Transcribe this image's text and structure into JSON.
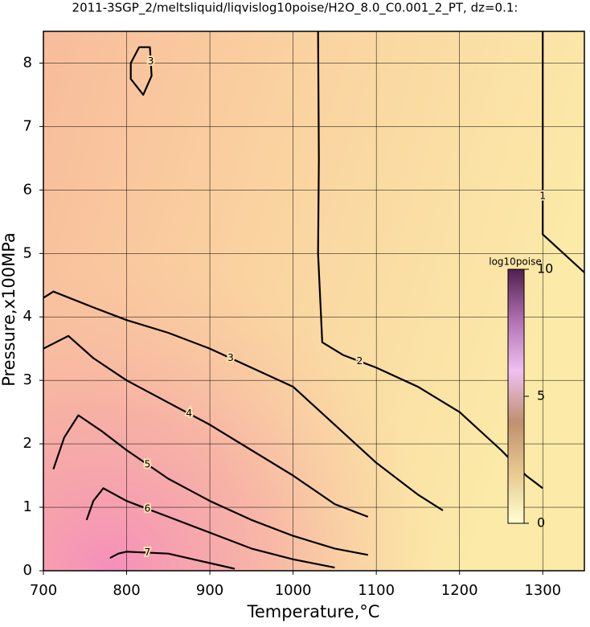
{
  "chart_data": {
    "type": "contour",
    "title": "2011-3SGP_2/meltsliquid/liqvislog10poise/H2O_8.0_C0.001_2_PT, dz=0.1:",
    "x_label": "Temperature,°C",
    "y_label": "Pressure,x100MPa",
    "xlim": [
      700,
      1350
    ],
    "ylim": [
      0,
      8.5
    ],
    "xticks": [
      700,
      800,
      900,
      1000,
      1100,
      1200,
      1300
    ],
    "yticks": [
      0,
      1,
      2,
      3,
      4,
      5,
      6,
      7,
      8
    ],
    "grid": true,
    "series": [
      {
        "level": 1,
        "x": [
          1300,
          1300,
          1300,
          1350
        ],
        "y": [
          8.5,
          6.5,
          5.3,
          4.7
        ]
      },
      {
        "level": 2,
        "x": [
          1030,
          1031,
          1030,
          1035,
          1060,
          1100,
          1150,
          1200,
          1250,
          1280,
          1300
        ],
        "y": [
          8.5,
          6.5,
          5.0,
          3.6,
          3.4,
          3.2,
          2.9,
          2.5,
          1.9,
          1.5,
          1.3
        ]
      },
      {
        "level": 3,
        "x": [
          700,
          712,
          760,
          800,
          850,
          900,
          950,
          1000,
          1050,
          1100,
          1150,
          1180
        ],
        "y": [
          4.3,
          4.4,
          4.15,
          3.95,
          3.75,
          3.5,
          3.2,
          2.9,
          2.3,
          1.7,
          1.2,
          0.95
        ]
      },
      {
        "level": 3,
        "x": [
          805,
          815,
          828,
          830,
          820,
          805,
          805
        ],
        "y": [
          8.0,
          8.25,
          8.25,
          7.8,
          7.5,
          7.75,
          8.0
        ]
      },
      {
        "level": 4,
        "x": [
          700,
          730,
          760,
          800,
          850,
          900,
          950,
          1000,
          1050,
          1090
        ],
        "y": [
          3.5,
          3.7,
          3.35,
          3.0,
          2.65,
          2.3,
          1.9,
          1.5,
          1.05,
          0.85
        ]
      },
      {
        "level": 5,
        "x": [
          712,
          725,
          742,
          770,
          800,
          850,
          900,
          950,
          1000,
          1050,
          1090
        ],
        "y": [
          1.6,
          2.1,
          2.45,
          2.2,
          1.9,
          1.45,
          1.1,
          0.8,
          0.55,
          0.35,
          0.25
        ]
      },
      {
        "level": 6,
        "x": [
          752,
          760,
          772,
          800,
          850,
          900,
          950,
          1000,
          1050
        ],
        "y": [
          0.8,
          1.1,
          1.3,
          1.1,
          0.85,
          0.6,
          0.35,
          0.18,
          0.05
        ]
      },
      {
        "level": 7,
        "x": [
          780,
          790,
          800,
          850,
          900,
          930
        ],
        "y": [
          0.2,
          0.27,
          0.3,
          0.27,
          0.12,
          0.03
        ]
      }
    ],
    "colorbar": {
      "title": "log10poise",
      "lim": [
        0,
        10
      ],
      "ticks": [
        0,
        5,
        10
      ],
      "colors": [
        "#ffffd0",
        "#e8c890",
        "#c09070",
        "#f0c0f0",
        "#b070b0",
        "#502050"
      ]
    }
  }
}
